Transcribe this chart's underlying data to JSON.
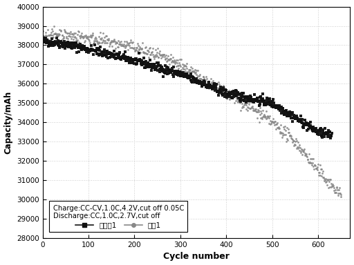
{
  "title": "",
  "xlabel": "Cycle number",
  "ylabel": "Capacity/mAh",
  "xlim": [
    0,
    670
  ],
  "ylim": [
    28000,
    40000
  ],
  "yticks": [
    28000,
    29000,
    30000,
    31000,
    32000,
    33000,
    34000,
    35000,
    36000,
    37000,
    38000,
    39000,
    40000
  ],
  "xticks": [
    0,
    100,
    200,
    300,
    400,
    500,
    600
  ],
  "series1_name": "实施例1",
  "series2_name": "对比1",
  "series1_color": "#111111",
  "series2_color": "#888888",
  "legend_text_line1": "Charge:CC-CV,1.0C,4.2V,cut off 0.05C",
  "legend_text_line2": "Discharge:CC,1.0C,2.7V,cut off",
  "background_color": "#ffffff",
  "grid_color": "#cccccc",
  "seed": 42,
  "n1": 630,
  "n2": 650,
  "noise1": 120,
  "noise2": 150,
  "trend1_x": [
    0,
    30,
    100,
    200,
    300,
    400,
    500,
    600,
    630
  ],
  "trend1_y": [
    38200,
    38150,
    37800,
    37200,
    36500,
    35500,
    35000,
    33500,
    33300
  ],
  "trend2_x": [
    0,
    30,
    100,
    200,
    300,
    400,
    450,
    500,
    550,
    600,
    650
  ],
  "trend2_y": [
    38500,
    38600,
    38400,
    37900,
    37000,
    35500,
    34800,
    34000,
    33000,
    31500,
    30200
  ]
}
